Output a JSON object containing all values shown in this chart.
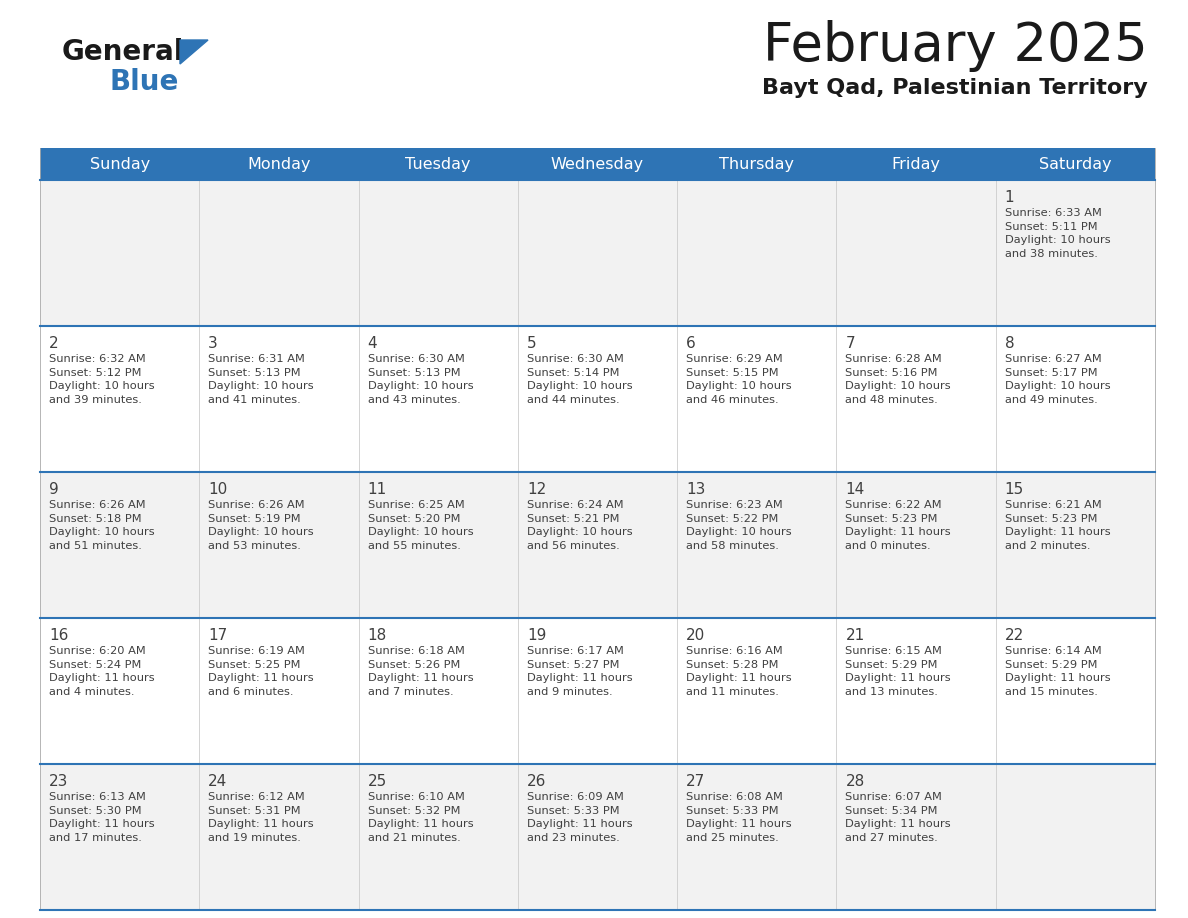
{
  "title": "February 2025",
  "subtitle": "Bayt Qad, Palestinian Territory",
  "header_bg": "#2E74B5",
  "header_text_color": "#FFFFFF",
  "days_of_week": [
    "Sunday",
    "Monday",
    "Tuesday",
    "Wednesday",
    "Thursday",
    "Friday",
    "Saturday"
  ],
  "cell_bg_row0": "#F2F2F2",
  "cell_bg_row1": "#FFFFFF",
  "cell_bg_row2": "#F2F2F2",
  "cell_bg_row3": "#FFFFFF",
  "cell_bg_row4": "#F2F2F2",
  "divider_color": "#2E74B5",
  "text_color": "#404040",
  "day_number_color": "#404040",
  "calendar": [
    [
      {
        "day": "",
        "info": ""
      },
      {
        "day": "",
        "info": ""
      },
      {
        "day": "",
        "info": ""
      },
      {
        "day": "",
        "info": ""
      },
      {
        "day": "",
        "info": ""
      },
      {
        "day": "",
        "info": ""
      },
      {
        "day": "1",
        "info": "Sunrise: 6:33 AM\nSunset: 5:11 PM\nDaylight: 10 hours\nand 38 minutes."
      }
    ],
    [
      {
        "day": "2",
        "info": "Sunrise: 6:32 AM\nSunset: 5:12 PM\nDaylight: 10 hours\nand 39 minutes."
      },
      {
        "day": "3",
        "info": "Sunrise: 6:31 AM\nSunset: 5:13 PM\nDaylight: 10 hours\nand 41 minutes."
      },
      {
        "day": "4",
        "info": "Sunrise: 6:30 AM\nSunset: 5:13 PM\nDaylight: 10 hours\nand 43 minutes."
      },
      {
        "day": "5",
        "info": "Sunrise: 6:30 AM\nSunset: 5:14 PM\nDaylight: 10 hours\nand 44 minutes."
      },
      {
        "day": "6",
        "info": "Sunrise: 6:29 AM\nSunset: 5:15 PM\nDaylight: 10 hours\nand 46 minutes."
      },
      {
        "day": "7",
        "info": "Sunrise: 6:28 AM\nSunset: 5:16 PM\nDaylight: 10 hours\nand 48 minutes."
      },
      {
        "day": "8",
        "info": "Sunrise: 6:27 AM\nSunset: 5:17 PM\nDaylight: 10 hours\nand 49 minutes."
      }
    ],
    [
      {
        "day": "9",
        "info": "Sunrise: 6:26 AM\nSunset: 5:18 PM\nDaylight: 10 hours\nand 51 minutes."
      },
      {
        "day": "10",
        "info": "Sunrise: 6:26 AM\nSunset: 5:19 PM\nDaylight: 10 hours\nand 53 minutes."
      },
      {
        "day": "11",
        "info": "Sunrise: 6:25 AM\nSunset: 5:20 PM\nDaylight: 10 hours\nand 55 minutes."
      },
      {
        "day": "12",
        "info": "Sunrise: 6:24 AM\nSunset: 5:21 PM\nDaylight: 10 hours\nand 56 minutes."
      },
      {
        "day": "13",
        "info": "Sunrise: 6:23 AM\nSunset: 5:22 PM\nDaylight: 10 hours\nand 58 minutes."
      },
      {
        "day": "14",
        "info": "Sunrise: 6:22 AM\nSunset: 5:23 PM\nDaylight: 11 hours\nand 0 minutes."
      },
      {
        "day": "15",
        "info": "Sunrise: 6:21 AM\nSunset: 5:23 PM\nDaylight: 11 hours\nand 2 minutes."
      }
    ],
    [
      {
        "day": "16",
        "info": "Sunrise: 6:20 AM\nSunset: 5:24 PM\nDaylight: 11 hours\nand 4 minutes."
      },
      {
        "day": "17",
        "info": "Sunrise: 6:19 AM\nSunset: 5:25 PM\nDaylight: 11 hours\nand 6 minutes."
      },
      {
        "day": "18",
        "info": "Sunrise: 6:18 AM\nSunset: 5:26 PM\nDaylight: 11 hours\nand 7 minutes."
      },
      {
        "day": "19",
        "info": "Sunrise: 6:17 AM\nSunset: 5:27 PM\nDaylight: 11 hours\nand 9 minutes."
      },
      {
        "day": "20",
        "info": "Sunrise: 6:16 AM\nSunset: 5:28 PM\nDaylight: 11 hours\nand 11 minutes."
      },
      {
        "day": "21",
        "info": "Sunrise: 6:15 AM\nSunset: 5:29 PM\nDaylight: 11 hours\nand 13 minutes."
      },
      {
        "day": "22",
        "info": "Sunrise: 6:14 AM\nSunset: 5:29 PM\nDaylight: 11 hours\nand 15 minutes."
      }
    ],
    [
      {
        "day": "23",
        "info": "Sunrise: 6:13 AM\nSunset: 5:30 PM\nDaylight: 11 hours\nand 17 minutes."
      },
      {
        "day": "24",
        "info": "Sunrise: 6:12 AM\nSunset: 5:31 PM\nDaylight: 11 hours\nand 19 minutes."
      },
      {
        "day": "25",
        "info": "Sunrise: 6:10 AM\nSunset: 5:32 PM\nDaylight: 11 hours\nand 21 minutes."
      },
      {
        "day": "26",
        "info": "Sunrise: 6:09 AM\nSunset: 5:33 PM\nDaylight: 11 hours\nand 23 minutes."
      },
      {
        "day": "27",
        "info": "Sunrise: 6:08 AM\nSunset: 5:33 PM\nDaylight: 11 hours\nand 25 minutes."
      },
      {
        "day": "28",
        "info": "Sunrise: 6:07 AM\nSunset: 5:34 PM\nDaylight: 11 hours\nand 27 minutes."
      },
      {
        "day": "",
        "info": ""
      }
    ]
  ],
  "logo_text_general": "General",
  "logo_text_blue": "Blue",
  "logo_color_general": "#1a1a1a",
  "logo_color_blue": "#2E74B5",
  "logo_triangle_color": "#2E74B5",
  "row_bg_colors": [
    "#F2F2F2",
    "#FFFFFF",
    "#F2F2F2",
    "#FFFFFF",
    "#F2F2F2"
  ]
}
